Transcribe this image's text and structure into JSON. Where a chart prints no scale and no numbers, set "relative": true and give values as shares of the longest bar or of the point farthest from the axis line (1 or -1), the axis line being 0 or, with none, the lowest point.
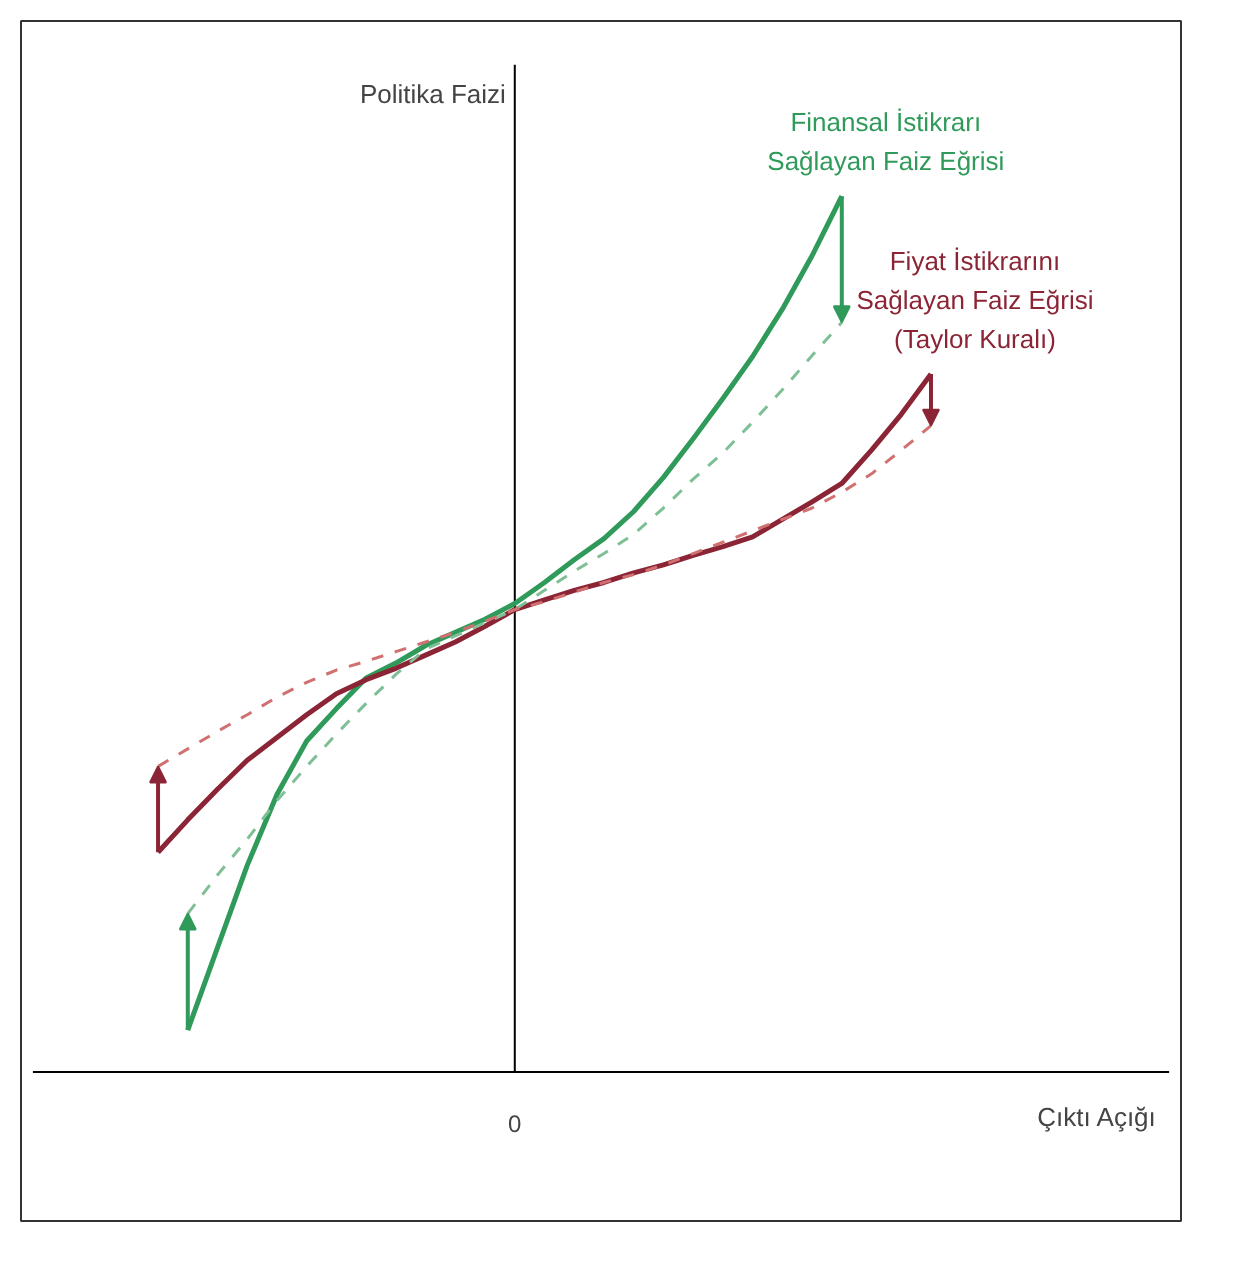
{
  "chart_data": {
    "type": "line",
    "relative": true,
    "xlabel": "Çıktı Açığı",
    "ylabel": "Politika Faizi",
    "annotations": [
      "0"
    ],
    "categories": [
      null,
      null,
      null,
      null,
      null,
      null,
      null,
      null,
      null,
      null,
      null,
      null,
      null,
      null,
      null,
      null,
      null,
      null,
      null,
      null,
      null,
      null,
      null,
      null,
      null,
      null,
      null,
      null,
      null
    ],
    "series": [
      {
        "name": "Finansal İstikrarı\nSağlayan Faiz Eğrisi",
        "color": "#2f9a5a",
        "values": [
          null,
          null,
          null,
          0.048,
          0.142,
          0.236,
          0.317,
          0.378,
          0.415,
          0.45,
          0.467,
          0.487,
          0.502,
          0.517,
          0.535,
          0.559,
          0.585,
          0.609,
          0.64,
          0.679,
          0.723,
          0.769,
          0.817,
          0.871,
          0.932,
          1,
          null,
          null,
          null
        ]
      },
      {
        "name": "Fiyat İstikrarını\nSağlayan Faiz Eğrisi\n(Taylor Kuralı)",
        "color": "#8b2535",
        "values": [
          null,
          null,
          0.251,
          0.288,
          0.323,
          0.356,
          0.382,
          0.408,
          0.432,
          0.448,
          0.461,
          0.476,
          0.491,
          0.509,
          0.528,
          0.539,
          0.55,
          0.559,
          0.57,
          0.579,
          0.59,
          0.6,
          0.611,
          0.631,
          0.651,
          0.672,
          0.71,
          0.751,
          0.797
        ]
      },
      {
        "color": "#7fbf95",
        "line_style": "dashed",
        "values": [
          null,
          null,
          null,
          0.181,
          0.225,
          0.266,
          0.31,
          0.349,
          0.386,
          0.421,
          0.454,
          0.483,
          0.498,
          0.513,
          0.528,
          0.55,
          0.572,
          0.592,
          0.614,
          0.644,
          0.677,
          0.707,
          0.742,
          0.779,
          0.818,
          0.856,
          null,
          null,
          null
        ]
      },
      {
        "color": "#d07070",
        "line_style": "dashed",
        "values": [
          null,
          null,
          0.349,
          0.369,
          0.389,
          0.408,
          0.428,
          0.445,
          0.459,
          0.469,
          0.48,
          0.491,
          0.502,
          0.515,
          0.528,
          0.537,
          0.548,
          0.559,
          0.568,
          0.579,
          0.592,
          0.605,
          0.618,
          0.631,
          0.644,
          0.662,
          0.683,
          0.71,
          0.738
        ]
      }
    ]
  }
}
